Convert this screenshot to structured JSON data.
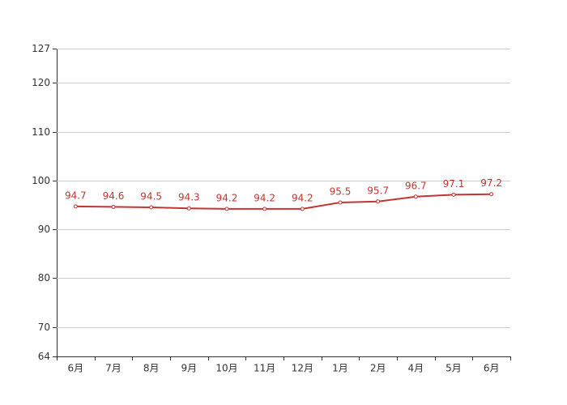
{
  "chart_data": {
    "type": "line",
    "categories": [
      "6月",
      "7月",
      "8月",
      "9月",
      "10月",
      "11月",
      "12月",
      "1月",
      "2月",
      "4月",
      "5月",
      "6月"
    ],
    "series": [
      {
        "color": "#c23531",
        "values": [
          94.7,
          94.6,
          94.5,
          94.3,
          94.2,
          94.2,
          94.2,
          95.5,
          95.7,
          96.7,
          97.1,
          97.2
        ]
      }
    ],
    "ylim": [
      64,
      127
    ],
    "yticks": [
      64,
      70,
      80,
      90,
      100,
      110,
      120,
      127
    ],
    "grid": true
  }
}
